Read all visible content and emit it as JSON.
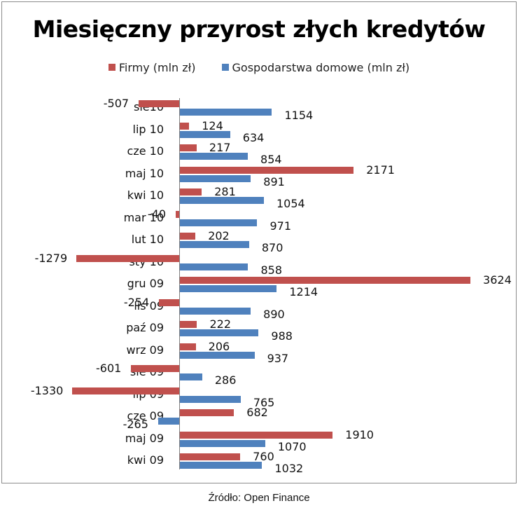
{
  "chart_data": {
    "type": "bar",
    "orientation": "horizontal",
    "title": "Miesięczny przyrost złych kredytów",
    "categories": [
      "sie10",
      "lip 10",
      "cze 10",
      "maj 10",
      "kwi 10",
      "mar 10",
      "lut 10",
      "sty 10",
      "gru 09",
      "lis 09",
      "paź 09",
      "wrz 09",
      "sie 09",
      "lip 09",
      "cze 09",
      "maj 09",
      "kwi 09"
    ],
    "series": [
      {
        "name": "Firmy (mln zł)",
        "color": "#c0504d",
        "values": [
          -507,
          124,
          217,
          2171,
          281,
          -40,
          202,
          -1279,
          3624,
          -254,
          222,
          206,
          -601,
          -1330,
          682,
          1910,
          760
        ]
      },
      {
        "name": "Gospodarstwa domowe (mln zł)",
        "color": "#4f81bd",
        "values": [
          1154,
          634,
          854,
          891,
          1054,
          971,
          870,
          858,
          1214,
          890,
          988,
          937,
          286,
          765,
          -265,
          1070,
          1032
        ]
      }
    ],
    "xlabel": "",
    "ylabel": "",
    "grid": false,
    "legend_position": "top",
    "source": "Źródło: Open Finance"
  },
  "header": {
    "title": "Miesięczny przyrost złych kredytów",
    "legend": [
      "Firmy (mln zł)",
      "Gospodarstwa domowe (mln zł)"
    ]
  },
  "footer": {
    "source": "Źródło: Open Finance"
  }
}
